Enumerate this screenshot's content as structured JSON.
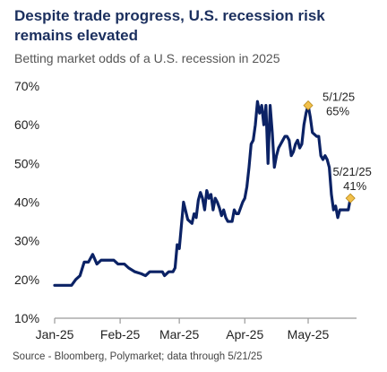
{
  "colors": {
    "title": "#1b2f5e",
    "subtitle": "#555555",
    "line": "#0b2265",
    "axis": "#9a9a9a",
    "tick_text": "#222222",
    "marker": "#f2c04b",
    "marker_outline": "#b98a1a",
    "source": "#444444"
  },
  "chart_data": {
    "type": "line",
    "title": "Despite trade progress, U.S. recession risk remains elevated",
    "subtitle": "Betting market odds of a U.S. recession in 2025",
    "xlabel": "",
    "ylabel": "",
    "ylim": [
      10,
      70
    ],
    "yticks": [
      "10%",
      "20%",
      "30%",
      "40%",
      "50%",
      "60%",
      "70%"
    ],
    "xlim": [
      "2025-01-01",
      "2025-05-31"
    ],
    "xtick_dates": [
      "2025-01-01",
      "2025-02-01",
      "2025-03-01",
      "2025-04-01",
      "2025-05-01"
    ],
    "xticks": [
      "Jan-25",
      "Feb-25",
      "Mar-25",
      "Apr-25",
      "May-25"
    ],
    "grid": false,
    "legend": "none",
    "series": [
      {
        "values": [
          [
            "2025-01-01",
            18.5
          ],
          [
            "2025-01-09",
            18.5
          ],
          [
            "2025-01-11",
            20
          ],
          [
            "2025-01-13",
            21
          ],
          [
            "2025-01-15",
            24.5
          ],
          [
            "2025-01-17",
            24.5
          ],
          [
            "2025-01-19",
            26.5
          ],
          [
            "2025-01-21",
            24
          ],
          [
            "2025-01-23",
            25
          ],
          [
            "2025-01-26",
            25
          ],
          [
            "2025-01-29",
            25
          ],
          [
            "2025-01-31",
            24
          ],
          [
            "2025-02-03",
            24
          ],
          [
            "2025-02-05",
            23
          ],
          [
            "2025-02-08",
            22
          ],
          [
            "2025-02-11",
            21.5
          ],
          [
            "2025-02-13",
            21
          ],
          [
            "2025-02-15",
            22
          ],
          [
            "2025-02-18",
            22
          ],
          [
            "2025-02-21",
            22
          ],
          [
            "2025-02-22",
            21
          ],
          [
            "2025-02-24",
            22
          ],
          [
            "2025-02-26",
            22
          ],
          [
            "2025-02-27",
            23
          ],
          [
            "2025-02-28",
            29
          ],
          [
            "2025-03-01",
            28
          ],
          [
            "2025-03-03",
            40
          ],
          [
            "2025-03-05",
            35.5
          ],
          [
            "2025-03-07",
            34.5
          ],
          [
            "2025-03-08",
            37
          ],
          [
            "2025-03-09",
            36
          ],
          [
            "2025-03-10",
            40.5
          ],
          [
            "2025-03-11",
            42.5
          ],
          [
            "2025-03-12",
            41
          ],
          [
            "2025-03-13",
            38
          ],
          [
            "2025-03-14",
            43
          ],
          [
            "2025-03-15",
            41
          ],
          [
            "2025-03-16",
            42
          ],
          [
            "2025-03-17",
            38
          ],
          [
            "2025-03-18",
            41
          ],
          [
            "2025-03-19",
            40
          ],
          [
            "2025-03-20",
            38.5
          ],
          [
            "2025-03-21",
            36.5
          ],
          [
            "2025-03-22",
            38
          ],
          [
            "2025-03-23",
            36
          ],
          [
            "2025-03-24",
            35
          ],
          [
            "2025-03-26",
            35
          ],
          [
            "2025-03-27",
            38
          ],
          [
            "2025-03-28",
            37
          ],
          [
            "2025-03-29",
            37
          ],
          [
            "2025-03-31",
            40
          ],
          [
            "2025-04-01",
            41
          ],
          [
            "2025-04-02",
            44
          ],
          [
            "2025-04-03",
            49
          ],
          [
            "2025-04-04",
            55
          ],
          [
            "2025-04-05",
            56
          ],
          [
            "2025-04-06",
            60
          ],
          [
            "2025-04-07",
            66
          ],
          [
            "2025-04-08",
            63
          ],
          [
            "2025-04-09",
            65
          ],
          [
            "2025-04-10",
            60
          ],
          [
            "2025-04-11",
            65
          ],
          [
            "2025-04-12",
            50
          ],
          [
            "2025-04-13",
            65
          ],
          [
            "2025-04-14",
            58
          ],
          [
            "2025-04-15",
            49
          ],
          [
            "2025-04-16",
            52
          ],
          [
            "2025-04-17",
            54
          ],
          [
            "2025-04-18",
            55
          ],
          [
            "2025-04-19",
            56
          ],
          [
            "2025-04-20",
            57
          ],
          [
            "2025-04-21",
            57
          ],
          [
            "2025-04-22",
            56
          ],
          [
            "2025-04-23",
            52
          ],
          [
            "2025-04-24",
            53
          ],
          [
            "2025-04-25",
            55
          ],
          [
            "2025-04-26",
            56
          ],
          [
            "2025-04-27",
            54
          ],
          [
            "2025-04-28",
            55
          ],
          [
            "2025-04-29",
            60
          ],
          [
            "2025-04-30",
            63
          ],
          [
            "2025-05-01",
            65
          ],
          [
            "2025-05-02",
            62
          ],
          [
            "2025-05-03",
            58
          ],
          [
            "2025-05-05",
            57
          ],
          [
            "2025-05-06",
            57
          ],
          [
            "2025-05-07",
            52
          ],
          [
            "2025-05-08",
            51
          ],
          [
            "2025-05-09",
            52
          ],
          [
            "2025-05-10",
            51
          ],
          [
            "2025-05-11",
            49
          ],
          [
            "2025-05-12",
            42
          ],
          [
            "2025-05-13",
            38
          ],
          [
            "2025-05-14",
            39
          ],
          [
            "2025-05-15",
            36
          ],
          [
            "2025-05-16",
            38
          ],
          [
            "2025-05-18",
            38
          ],
          [
            "2025-05-20",
            38
          ],
          [
            "2025-05-21",
            41
          ]
        ]
      }
    ],
    "annotations": [
      {
        "date": "2025-05-01",
        "value": 65,
        "label_date": "5/1/25",
        "label_value": "65%"
      },
      {
        "date": "2025-05-21",
        "value": 41,
        "label_date": "5/21/25",
        "label_value": "41%"
      }
    ]
  },
  "source": "Source - Bloomberg, Polymarket; data through 5/21/25"
}
